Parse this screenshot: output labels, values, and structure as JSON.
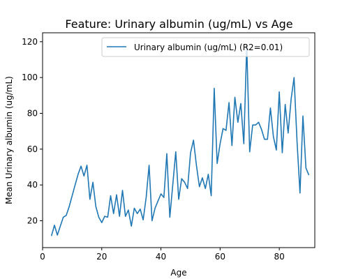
{
  "chart_data": {
    "type": "line",
    "title": "Feature: Urinary albumin (ug/mL) vs Age",
    "xlabel": "Age",
    "ylabel": "Mean Urinary albumin (ug/mL)",
    "xlim": [
      0,
      92
    ],
    "ylim": [
      5,
      125
    ],
    "xticks": [
      0,
      20,
      40,
      60,
      80
    ],
    "yticks": [
      20,
      40,
      60,
      80,
      100,
      120
    ],
    "grid": false,
    "legend_position": "top-right",
    "series": [
      {
        "name": "Urinary albumin (ug/mL) (R2=0.01)",
        "color": "#1f77b4",
        "x": [
          3,
          4,
          5,
          6,
          7,
          8,
          9,
          10,
          11,
          12,
          13,
          14,
          15,
          16,
          17,
          18,
          19,
          20,
          21,
          22,
          23,
          24,
          25,
          26,
          27,
          28,
          29,
          30,
          31,
          32,
          33,
          34,
          35,
          36,
          37,
          38,
          39,
          40,
          41,
          42,
          43,
          44,
          45,
          46,
          47,
          48,
          49,
          50,
          51,
          52,
          53,
          54,
          55,
          56,
          57,
          58,
          59,
          60,
          61,
          62,
          63,
          64,
          65,
          66,
          67,
          68,
          69,
          70,
          71,
          72,
          73,
          74,
          75,
          76,
          77,
          78,
          79,
          80,
          81,
          82,
          83,
          84,
          85,
          86,
          87,
          88,
          89,
          90
        ],
        "y": [
          11.5,
          17.5,
          12,
          17,
          22,
          23,
          28,
          34,
          40,
          46,
          50.5,
          45,
          51,
          32,
          41.5,
          28,
          22,
          19,
          22.5,
          22,
          34,
          24,
          34.5,
          22.5,
          37,
          22.5,
          26,
          17,
          27,
          24,
          26.5,
          20.5,
          33,
          51,
          20,
          27,
          31,
          35,
          33,
          57.5,
          22,
          40,
          58.5,
          32,
          43.5,
          41.5,
          38,
          58,
          65,
          51,
          39,
          44,
          38,
          46,
          34,
          94,
          52,
          63,
          71.5,
          70.5,
          86,
          62,
          89,
          75,
          85.5,
          63,
          118,
          58.5,
          73.5,
          73.5,
          75,
          71,
          65.5,
          65.5,
          83,
          67,
          59.5,
          92,
          58,
          85,
          69,
          88,
          100,
          64,
          35.5,
          78.5,
          49.5,
          45.5
        ]
      }
    ]
  }
}
